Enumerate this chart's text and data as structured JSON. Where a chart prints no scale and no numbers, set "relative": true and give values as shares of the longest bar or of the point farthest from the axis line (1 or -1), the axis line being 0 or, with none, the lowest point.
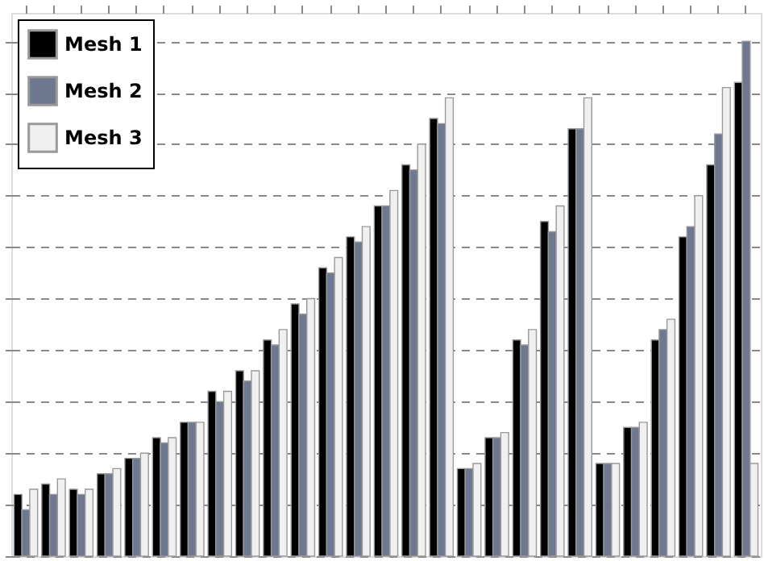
{
  "chart_data": {
    "type": "bar",
    "relative": true,
    "grid": "y",
    "legend": "top left",
    "categories": [
      null,
      null,
      null,
      null,
      null,
      null,
      null,
      null,
      null,
      null,
      null,
      null,
      null,
      null,
      null,
      null,
      null,
      null,
      null,
      null,
      null,
      null,
      null,
      null,
      null,
      null,
      null
    ],
    "series": [
      {
        "name": "Mesh 1",
        "color": "#000000",
        "values": [
          0.12,
          0.14,
          0.13,
          0.16,
          0.19,
          0.23,
          0.26,
          0.32,
          0.36,
          0.42,
          0.49,
          0.56,
          0.62,
          0.68,
          0.76,
          0.85,
          0.17,
          0.23,
          0.42,
          0.65,
          0.83,
          0.18,
          0.25,
          0.42,
          0.62,
          0.76,
          0.92
        ]
      },
      {
        "name": "Mesh 2",
        "color": "#6e7890",
        "values": [
          0.09,
          0.12,
          0.12,
          0.16,
          0.19,
          0.22,
          0.26,
          0.3,
          0.34,
          0.41,
          0.47,
          0.55,
          0.61,
          0.68,
          0.75,
          0.84,
          0.17,
          0.23,
          0.41,
          0.63,
          0.83,
          0.18,
          0.25,
          0.44,
          0.64,
          0.82,
          1
        ]
      },
      {
        "name": "Mesh 3",
        "color": "#f0f0f0",
        "values": [
          0.13,
          0.15,
          0.13,
          0.17,
          0.2,
          0.23,
          0.26,
          0.32,
          0.36,
          0.44,
          0.5,
          0.58,
          0.64,
          0.71,
          0.8,
          0.89,
          0.18,
          0.24,
          0.44,
          0.68,
          0.89,
          0.18,
          0.26,
          0.46,
          0.7,
          0.91,
          0.18
        ]
      }
    ]
  }
}
